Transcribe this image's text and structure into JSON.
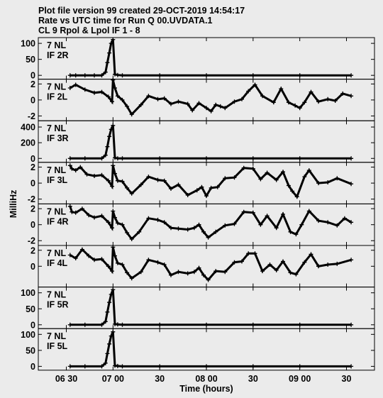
{
  "header": {
    "line1": "Plot file version 99  created 29-OCT-2019 14:54:17",
    "line2": "Rate vs UTC time for Run Q 00.UVDATA.1",
    "line3": "CL 9  Rpol & Lpol  IF 1 - 8"
  },
  "chart_data": {
    "type": "scatter",
    "ylabel": "MilliHz",
    "xlabel": "Time (hours)",
    "x_tick_labels": [
      "06 30",
      "07 00",
      "30",
      "08 00",
      "30",
      "09 00",
      "30"
    ],
    "x_ticks_hours": [
      6.5,
      7.0,
      7.5,
      8.0,
      8.5,
      9.0,
      9.5
    ],
    "xlim": [
      6.2,
      9.8
    ],
    "panels": [
      {
        "label_line1": "7 NL",
        "label_line2": "IF 2R",
        "ylim": [
          -12,
          118
        ],
        "y_tick_labels": [
          "100",
          "50",
          "0"
        ],
        "y_ticks": [
          100,
          50,
          0
        ],
        "points": [
          [
            6.54,
            0
          ],
          [
            6.6,
            0
          ],
          [
            6.7,
            0
          ],
          [
            6.8,
            0
          ],
          [
            6.88,
            0
          ],
          [
            6.92,
            10
          ],
          [
            6.94,
            40
          ],
          [
            6.96,
            70
          ],
          [
            6.98,
            100
          ],
          [
            7.0,
            112
          ],
          [
            7.02,
            3
          ],
          [
            7.05,
            1
          ],
          [
            7.1,
            0
          ],
          [
            7.5,
            0
          ],
          [
            8.0,
            0
          ],
          [
            8.5,
            0
          ],
          [
            9.0,
            0
          ],
          [
            9.55,
            0
          ]
        ]
      },
      {
        "label_line1": "7 NL",
        "label_line2": "IF 2L",
        "ylim": [
          -2.6,
          2.6
        ],
        "y_tick_labels": [
          "2",
          "0",
          "-2"
        ],
        "y_ticks": [
          2,
          0,
          -2
        ],
        "points": [
          [
            6.54,
            1.5
          ],
          [
            6.6,
            1.9
          ],
          [
            6.7,
            1.3
          ],
          [
            6.8,
            0.9
          ],
          [
            6.88,
            1.0
          ],
          [
            6.95,
            0.4
          ],
          [
            6.99,
            -0.2
          ],
          [
            7.0,
            2.5
          ],
          [
            7.02,
            1.5
          ],
          [
            7.05,
            0.5
          ],
          [
            7.1,
            0.0
          ],
          [
            7.15,
            -0.8
          ],
          [
            7.2,
            -1.8
          ],
          [
            7.3,
            -0.6
          ],
          [
            7.38,
            0.5
          ],
          [
            7.48,
            0.1
          ],
          [
            7.55,
            0.2
          ],
          [
            7.62,
            -0.5
          ],
          [
            7.7,
            -0.2
          ],
          [
            7.8,
            -0.5
          ],
          [
            7.85,
            -1.3
          ],
          [
            7.92,
            -0.4
          ],
          [
            8.0,
            -1.0
          ],
          [
            8.05,
            -1.4
          ],
          [
            8.1,
            -0.6
          ],
          [
            8.15,
            -0.8
          ],
          [
            8.2,
            -1.0
          ],
          [
            8.3,
            -0.2
          ],
          [
            8.38,
            0.1
          ],
          [
            8.45,
            1.1
          ],
          [
            8.52,
            1.9
          ],
          [
            8.6,
            0.5
          ],
          [
            8.72,
            -0.3
          ],
          [
            8.8,
            1.4
          ],
          [
            8.88,
            -0.3
          ],
          [
            8.95,
            -0.7
          ],
          [
            9.0,
            -1.0
          ],
          [
            9.05,
            -0.3
          ],
          [
            9.12,
            1.0
          ],
          [
            9.2,
            -0.2
          ],
          [
            9.3,
            0.1
          ],
          [
            9.38,
            -0.1
          ],
          [
            9.46,
            0.8
          ],
          [
            9.55,
            0.5
          ]
        ]
      },
      {
        "label_line1": "7 NL",
        "label_line2": "IF 3R",
        "ylim": [
          -50,
          480
        ],
        "y_tick_labels": [
          "400",
          "200",
          "0"
        ],
        "y_ticks": [
          400,
          200,
          0
        ],
        "points": [
          [
            6.54,
            0
          ],
          [
            6.7,
            0
          ],
          [
            6.88,
            0
          ],
          [
            6.92,
            40
          ],
          [
            6.94,
            150
          ],
          [
            6.96,
            280
          ],
          [
            6.98,
            370
          ],
          [
            7.0,
            420
          ],
          [
            7.02,
            8
          ],
          [
            7.05,
            1
          ],
          [
            7.1,
            0
          ],
          [
            7.5,
            0
          ],
          [
            8.0,
            0
          ],
          [
            8.5,
            0
          ],
          [
            9.0,
            0
          ],
          [
            9.55,
            0
          ]
        ]
      },
      {
        "label_line1": "7 NL",
        "label_line2": "IF 3L",
        "ylim": [
          -2.6,
          2.6
        ],
        "y_tick_labels": [
          "2",
          "0",
          "-2"
        ],
        "y_ticks": [
          2,
          0,
          -2
        ],
        "points": [
          [
            6.54,
            2.2
          ],
          [
            6.56,
            1.8
          ],
          [
            6.6,
            1.6
          ],
          [
            6.65,
            2.0
          ],
          [
            6.72,
            1.1
          ],
          [
            6.8,
            0.9
          ],
          [
            6.88,
            1.0
          ],
          [
            6.95,
            0.3
          ],
          [
            6.99,
            -0.4
          ],
          [
            7.0,
            2.2
          ],
          [
            7.02,
            1.2
          ],
          [
            7.05,
            0.3
          ],
          [
            7.1,
            0.2
          ],
          [
            7.15,
            -0.6
          ],
          [
            7.2,
            -1.3
          ],
          [
            7.3,
            -0.2
          ],
          [
            7.38,
            0.8
          ],
          [
            7.48,
            0.4
          ],
          [
            7.55,
            0.3
          ],
          [
            7.62,
            -0.7
          ],
          [
            7.7,
            -0.2
          ],
          [
            7.8,
            -1.5
          ],
          [
            7.9,
            -0.9
          ],
          [
            7.95,
            -0.5
          ],
          [
            8.0,
            -1.6
          ],
          [
            8.05,
            -0.6
          ],
          [
            8.12,
            -0.5
          ],
          [
            8.2,
            0.6
          ],
          [
            8.3,
            0.7
          ],
          [
            8.4,
            1.9
          ],
          [
            8.5,
            1.8
          ],
          [
            8.58,
            0.5
          ],
          [
            8.65,
            1.3
          ],
          [
            8.75,
            0.4
          ],
          [
            8.82,
            1.4
          ],
          [
            8.88,
            -0.3
          ],
          [
            8.92,
            -1.0
          ],
          [
            8.97,
            -1.7
          ],
          [
            9.05,
            0.8
          ],
          [
            9.1,
            1.6
          ],
          [
            9.2,
            0.0
          ],
          [
            9.3,
            0.1
          ],
          [
            9.4,
            0.6
          ],
          [
            9.55,
            -0.1
          ]
        ]
      },
      {
        "label_line1": "7 NL",
        "label_line2": "IF 4R",
        "ylim": [
          -2.6,
          2.6
        ],
        "y_tick_labels": [
          "2",
          "0",
          "-2"
        ],
        "y_ticks": [
          2,
          0,
          -2
        ],
        "points": [
          [
            6.54,
            2.3
          ],
          [
            6.56,
            1.6
          ],
          [
            6.6,
            1.5
          ],
          [
            6.67,
            2.0
          ],
          [
            6.74,
            1.2
          ],
          [
            6.8,
            0.9
          ],
          [
            6.88,
            1.1
          ],
          [
            6.95,
            0.3
          ],
          [
            6.99,
            -0.4
          ],
          [
            7.0,
            1.7
          ],
          [
            7.02,
            0.9
          ],
          [
            7.05,
            0.2
          ],
          [
            7.1,
            0.0
          ],
          [
            7.15,
            -1.0
          ],
          [
            7.2,
            -1.8
          ],
          [
            7.28,
            -0.9
          ],
          [
            7.38,
            0.8
          ],
          [
            7.48,
            0.6
          ],
          [
            7.55,
            0.3
          ],
          [
            7.62,
            -0.4
          ],
          [
            7.7,
            -0.5
          ],
          [
            7.8,
            -0.6
          ],
          [
            7.87,
            -0.4
          ],
          [
            7.92,
            0.0
          ],
          [
            7.97,
            -0.9
          ],
          [
            8.02,
            -1.6
          ],
          [
            8.1,
            -0.9
          ],
          [
            8.2,
            -0.1
          ],
          [
            8.3,
            0.1
          ],
          [
            8.4,
            1.6
          ],
          [
            8.5,
            1.5
          ],
          [
            8.58,
            0.0
          ],
          [
            8.65,
            1.1
          ],
          [
            8.75,
            -0.4
          ],
          [
            8.82,
            1.3
          ],
          [
            8.9,
            -0.9
          ],
          [
            8.96,
            -1.2
          ],
          [
            9.02,
            0.0
          ],
          [
            9.1,
            1.7
          ],
          [
            9.2,
            0.5
          ],
          [
            9.3,
            0.3
          ],
          [
            9.4,
            -0.1
          ],
          [
            9.48,
            0.8
          ],
          [
            9.55,
            0.3
          ]
        ]
      },
      {
        "label_line1": "7 NL",
        "label_line2": "IF 4L",
        "ylim": [
          -2.6,
          2.6
        ],
        "y_tick_labels": [
          "2",
          "0"
        ],
        "y_ticks": [
          2,
          0
        ],
        "points": [
          [
            6.54,
            1.4
          ],
          [
            6.6,
            1.0
          ],
          [
            6.67,
            2.1
          ],
          [
            6.74,
            1.3
          ],
          [
            6.8,
            0.8
          ],
          [
            6.88,
            0.9
          ],
          [
            6.95,
            0.0
          ],
          [
            6.99,
            -0.6
          ],
          [
            7.0,
            2.4
          ],
          [
            7.02,
            1.3
          ],
          [
            7.05,
            0.4
          ],
          [
            7.1,
            0.2
          ],
          [
            7.15,
            -0.8
          ],
          [
            7.2,
            -1.5
          ],
          [
            7.3,
            -0.7
          ],
          [
            7.38,
            0.8
          ],
          [
            7.48,
            0.5
          ],
          [
            7.55,
            0.2
          ],
          [
            7.62,
            -1.1
          ],
          [
            7.7,
            -0.7
          ],
          [
            7.8,
            -0.9
          ],
          [
            7.87,
            -0.7
          ],
          [
            7.92,
            -0.2
          ],
          [
            7.97,
            -1.1
          ],
          [
            8.02,
            -1.7
          ],
          [
            8.1,
            -0.6
          ],
          [
            8.2,
            -0.7
          ],
          [
            8.3,
            0.5
          ],
          [
            8.38,
            0.6
          ],
          [
            8.45,
            1.6
          ],
          [
            8.52,
            1.6
          ],
          [
            8.6,
            -0.6
          ],
          [
            8.68,
            0.2
          ],
          [
            8.75,
            -0.5
          ],
          [
            8.82,
            0.6
          ],
          [
            8.9,
            -0.8
          ],
          [
            8.96,
            -1.0
          ],
          [
            9.05,
            0.5
          ],
          [
            9.12,
            1.5
          ],
          [
            9.2,
            0.0
          ],
          [
            9.3,
            0.2
          ],
          [
            9.4,
            0.3
          ],
          [
            9.55,
            0.8
          ]
        ]
      },
      {
        "label_line1": "7 NL",
        "label_line2": "IF 5R",
        "ylim": [
          -12,
          118
        ],
        "y_tick_labels": [
          "100",
          "50",
          "0"
        ],
        "y_ticks": [
          100,
          50,
          0
        ],
        "points": [
          [
            6.54,
            0
          ],
          [
            6.7,
            0
          ],
          [
            6.88,
            0
          ],
          [
            6.92,
            10
          ],
          [
            6.94,
            40
          ],
          [
            6.96,
            70
          ],
          [
            6.98,
            95
          ],
          [
            7.0,
            110
          ],
          [
            7.02,
            2
          ],
          [
            7.05,
            1
          ],
          [
            7.1,
            0
          ],
          [
            7.5,
            0
          ],
          [
            8.0,
            0
          ],
          [
            8.5,
            0
          ],
          [
            9.0,
            0
          ],
          [
            9.55,
            0
          ]
        ]
      },
      {
        "label_line1": "7 NL",
        "label_line2": "IF 5L",
        "ylim": [
          -12,
          118
        ],
        "y_tick_labels": [
          "100",
          "50",
          "0"
        ],
        "y_ticks": [
          100,
          50,
          0
        ],
        "points": [
          [
            6.54,
            0
          ],
          [
            6.7,
            0
          ],
          [
            6.88,
            0
          ],
          [
            6.92,
            10
          ],
          [
            6.94,
            40
          ],
          [
            6.96,
            70
          ],
          [
            6.98,
            95
          ],
          [
            7.0,
            108
          ],
          [
            7.02,
            2
          ],
          [
            7.05,
            1
          ],
          [
            7.1,
            0
          ],
          [
            7.5,
            0
          ],
          [
            8.0,
            0
          ],
          [
            8.5,
            0
          ],
          [
            9.0,
            0
          ],
          [
            9.55,
            0
          ]
        ]
      }
    ]
  }
}
